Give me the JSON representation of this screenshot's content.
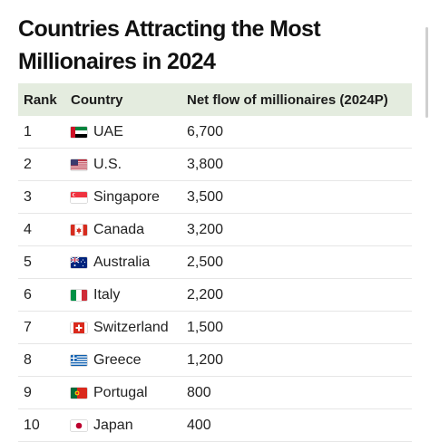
{
  "title": {
    "line1": "Countries Attracting the Most",
    "line2": "Millionaires in 2024"
  },
  "table": {
    "headers": [
      "Rank",
      "Country",
      "Net flow of millionaires (2024P)"
    ],
    "rows": [
      {
        "rank": "1",
        "country": "UAE",
        "flag": "uae-flag-icon",
        "value": "6,700"
      },
      {
        "rank": "2",
        "country": "U.S.",
        "flag": "us-flag-icon",
        "value": "3,800"
      },
      {
        "rank": "3",
        "country": "Singapore",
        "flag": "singapore-flag-icon",
        "value": "3,500"
      },
      {
        "rank": "4",
        "country": "Canada",
        "flag": "canada-flag-icon",
        "value": "3,200"
      },
      {
        "rank": "5",
        "country": "Australia",
        "flag": "australia-flag-icon",
        "value": "2,500"
      },
      {
        "rank": "6",
        "country": "Italy",
        "flag": "italy-flag-icon",
        "value": "2,200"
      },
      {
        "rank": "7",
        "country": "Switzerland",
        "flag": "switzerland-flag-icon",
        "value": "1,500"
      },
      {
        "rank": "8",
        "country": "Greece",
        "flag": "greece-flag-icon",
        "value": "1,200"
      },
      {
        "rank": "9",
        "country": "Portugal",
        "flag": "portugal-flag-icon",
        "value": "800"
      },
      {
        "rank": "10",
        "country": "Japan",
        "flag": "japan-flag-icon",
        "value": "400"
      }
    ]
  },
  "colors": {
    "header_bg": "#e4ecdf",
    "row_border": "#e6e6e6"
  },
  "chart_data": {
    "type": "table",
    "title": "Countries Attracting the Most Millionaires in 2024",
    "columns": [
      "Rank",
      "Country",
      "Net flow of millionaires (2024P)"
    ],
    "categories": [
      "UAE",
      "U.S.",
      "Singapore",
      "Canada",
      "Australia",
      "Italy",
      "Switzerland",
      "Greece",
      "Portugal",
      "Japan"
    ],
    "series": [
      {
        "name": "Net flow of millionaires (2024P)",
        "values": [
          6700,
          3800,
          3500,
          3200,
          2500,
          2200,
          1500,
          1200,
          800,
          400
        ]
      }
    ]
  }
}
